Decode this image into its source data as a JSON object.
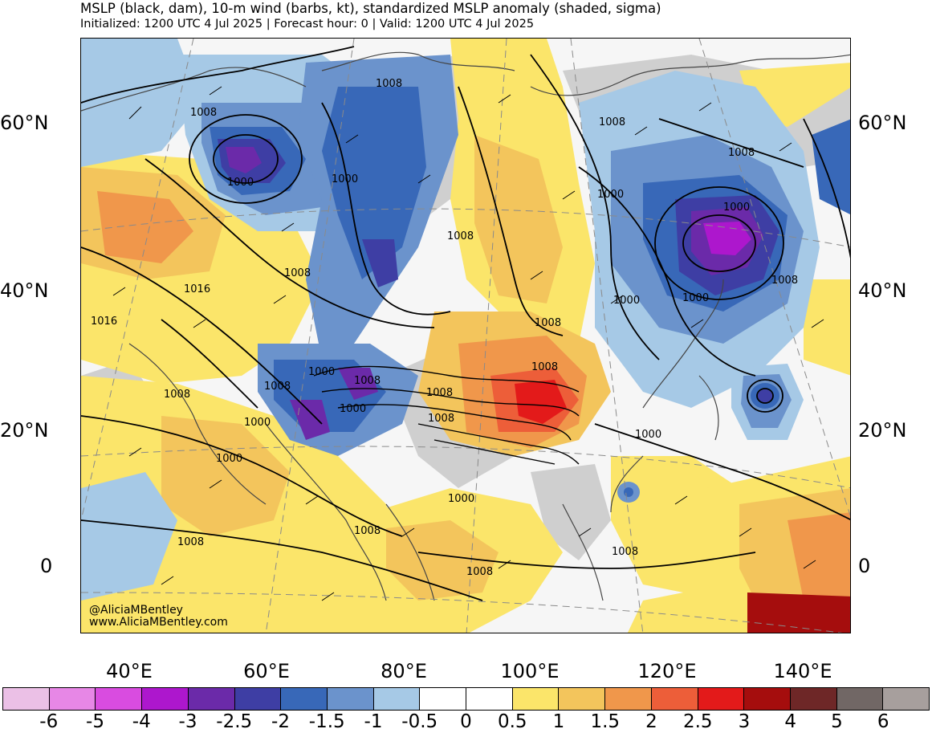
{
  "header": {
    "title": "MSLP (black, dam), 10-m wind (barbs, kt), standardized MSLP anomaly (shaded, sigma)",
    "subtitle": "Initialized: 1200 UTC 4 Jul 2025 | Forecast hour: 0 | Valid: 1200 UTC 4 Jul 2025"
  },
  "map": {
    "lat_labels": [
      "60°N",
      "40°N",
      "20°N",
      "0"
    ],
    "lon_labels": [
      "40°E",
      "60°E",
      "80°E",
      "100°E",
      "120°E",
      "140°E"
    ],
    "contour_labels": [
      "1008",
      "1008",
      "1000",
      "1000",
      "1008",
      "1008",
      "1008",
      "1016",
      "1016",
      "1008",
      "1000",
      "1000",
      "1008",
      "1000",
      "1000",
      "1008",
      "1008",
      "1000",
      "1008",
      "1008",
      "1008",
      "1000",
      "1008",
      "1000",
      "1000",
      "1008",
      "1000",
      "1000",
      "1008",
      "1008",
      "1008",
      "1008"
    ],
    "watermark": [
      "@AliciaMBentley",
      "www.AliciaMBentley.com"
    ]
  },
  "colorbar": {
    "labels": [
      "-6",
      "-5",
      "-4",
      "-3",
      "-2.5",
      "-2",
      "-1.5",
      "-1",
      "-0.5",
      "0",
      "0.5",
      "1",
      "1.5",
      "2",
      "2.5",
      "3",
      "4",
      "5",
      "6"
    ],
    "colors": [
      "#ebc0e6",
      "#e787e6",
      "#d94ce0",
      "#ad17cd",
      "#6b2aa9",
      "#3e3ea4",
      "#3868b8",
      "#6b93cc",
      "#a6c9e6",
      "#ffffff",
      "#ffffff",
      "#fbe56a",
      "#f3c55c",
      "#f0974b",
      "#ed5e39",
      "#e31a1a",
      "#a50d0d",
      "#6e2727",
      "#716765",
      "#a79f9d"
    ]
  }
}
